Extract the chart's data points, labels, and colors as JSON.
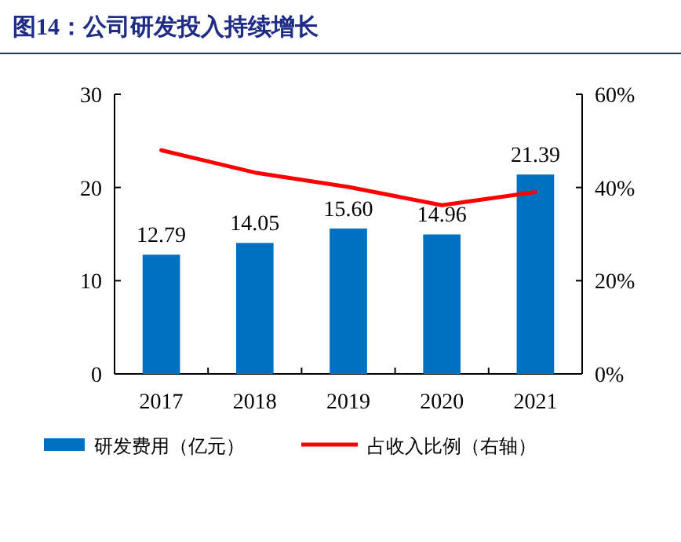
{
  "chart_data": {
    "type": "bar",
    "title": "图14：公司研发投入持续增长",
    "categories": [
      "2017",
      "2018",
      "2019",
      "2020",
      "2021"
    ],
    "series": [
      {
        "name": "研发费用（亿元）",
        "type": "bar",
        "color": "#0070c0",
        "values": [
          12.79,
          14.05,
          15.6,
          14.96,
          21.39
        ],
        "value_labels": [
          "12.79",
          "14.05",
          "15.60",
          "14.96",
          "21.39"
        ]
      },
      {
        "name": "占收入比例（右轴）",
        "type": "line",
        "color": "#ff0000",
        "axis": "y2",
        "values": [
          48.0,
          43.2,
          40.1,
          36.2,
          39.0
        ]
      }
    ],
    "ylim": [
      0,
      30
    ],
    "yticks": [
      0,
      10,
      20,
      30
    ],
    "y2lim": [
      0,
      60
    ],
    "y2ticks": [
      {
        "value": 0,
        "label": "0%"
      },
      {
        "value": 20,
        "label": "20%"
      },
      {
        "value": 40,
        "label": "40%"
      },
      {
        "value": 60,
        "label": "60%"
      }
    ],
    "legend": "bottom",
    "grid": false
  }
}
